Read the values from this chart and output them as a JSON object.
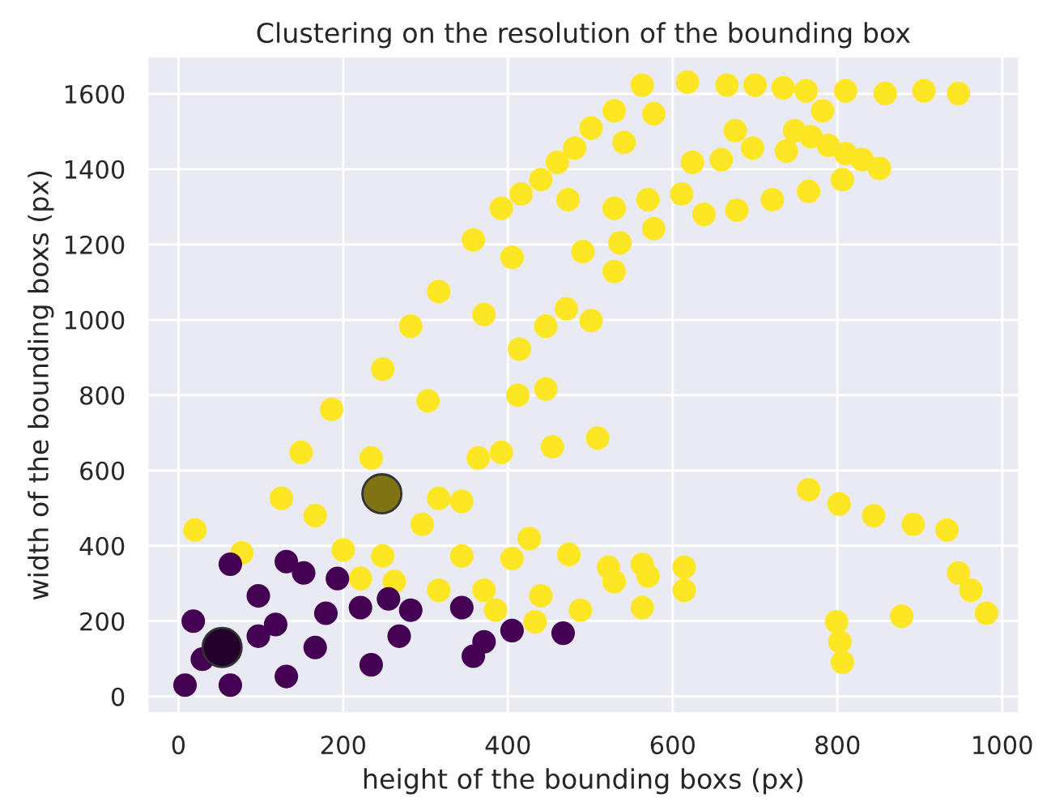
{
  "chart_data": {
    "type": "scatter",
    "title": "Clustering on the resolution of the bounding box",
    "xlabel": "height of the bounding boxs (px)",
    "ylabel": "width of the bounding boxs (px)",
    "xlim": [
      -38,
      1021
    ],
    "ylim": [
      -46,
      1700
    ],
    "xticks": [
      0,
      200,
      400,
      600,
      800,
      1000
    ],
    "yticks": [
      0,
      200,
      400,
      600,
      800,
      1000,
      1200,
      1400,
      1600
    ],
    "grid": true,
    "legend": false,
    "marker": "circle",
    "series": [
      {
        "color": "#fde725",
        "x": [
          20,
          77,
          125,
          149,
          186,
          248,
          282,
          316,
          358,
          392,
          416,
          440,
          460,
          481,
          501,
          529,
          563,
          618,
          666,
          700,
          734,
          762,
          810,
          858,
          905,
          947,
          782,
          748,
          768,
          789,
          810,
          830,
          851,
          738,
          697,
          659,
          624,
          676,
          806,
          765,
          721,
          678,
          638,
          577,
          536,
          491,
          611,
          570,
          529,
          529,
          501,
          471,
          446,
          414,
          446,
          412,
          509,
          454,
          392,
          364,
          344,
          316,
          296,
          234,
          303,
          371,
          405,
          473,
          541,
          577,
          166,
          200,
          248,
          344,
          405,
          474,
          426,
          316,
          385,
          440,
          522,
          563,
          570,
          614,
          614,
          529,
          488,
          563,
          433,
          262,
          221,
          371,
          765,
          844,
          933,
          947,
          981,
          878,
          799,
          806,
          803,
          962,
          802,
          892
        ],
        "values": [
          442,
          381,
          526,
          648,
          762,
          869,
          983,
          1075,
          1212,
          1296,
          1334,
          1372,
          1418,
          1456,
          1509,
          1555,
          1623,
          1631,
          1623,
          1623,
          1616,
          1608,
          1608,
          1601,
          1608,
          1601,
          1555,
          1502,
          1486,
          1463,
          1441,
          1425,
          1402,
          1448,
          1456,
          1425,
          1418,
          1502,
          1372,
          1341,
          1319,
          1291,
          1280,
          1242,
          1204,
          1181,
          1334,
          1319,
          1296,
          1128,
          998,
          1029,
          983,
          922,
          816,
          800,
          686,
          663,
          648,
          633,
          518,
          526,
          457,
          633,
          785,
          1014,
          1166,
          1319,
          1471,
          1547,
          480,
          389,
          373,
          373,
          366,
          377,
          419,
          282,
          229,
          267,
          343,
          351,
          320,
          343,
          282,
          305,
          229,
          236,
          198,
          305,
          313,
          282,
          549,
          480,
          442,
          328,
          221,
          213,
          198,
          91,
          145,
          282,
          511,
          457
        ]
      },
      {
        "color": "#440154",
        "x": [
          8,
          63,
          18,
          63,
          131,
          193,
          179,
          221,
          255,
          282,
          344,
          467,
          371,
          358,
          234,
          131,
          97,
          166,
          268,
          118,
          152,
          97,
          29,
          405
        ],
        "values": [
          30,
          30,
          200,
          351,
          358,
          313,
          221,
          236,
          259,
          229,
          236,
          168,
          145,
          107,
          84,
          53,
          160,
          130,
          160,
          191,
          328,
          267,
          99,
          175
        ]
      },
      {
        "color": "#7e7413",
        "x": [
          247
        ],
        "values": [
          538
        ]
      },
      {
        "color": "#22002b",
        "x": [
          53
        ],
        "values": [
          130
        ]
      }
    ]
  }
}
